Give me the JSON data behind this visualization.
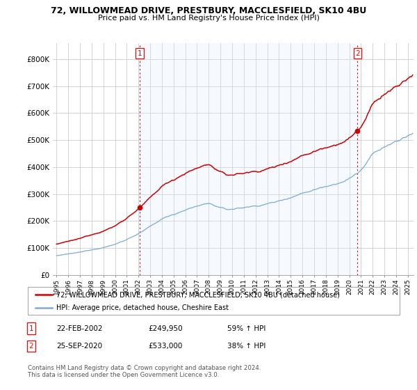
{
  "title1": "72, WILLOWMEAD DRIVE, PRESTBURY, MACCLESFIELD, SK10 4BU",
  "title2": "Price paid vs. HM Land Registry's House Price Index (HPI)",
  "ylabel_ticks": [
    "£0",
    "£100K",
    "£200K",
    "£300K",
    "£400K",
    "£500K",
    "£600K",
    "£700K",
    "£800K"
  ],
  "ytick_vals": [
    0,
    100000,
    200000,
    300000,
    400000,
    500000,
    600000,
    700000,
    800000
  ],
  "ylim": [
    0,
    860000
  ],
  "xlim_start": 1994.7,
  "xlim_end": 2025.5,
  "sale1_date": 2002.12,
  "sale1_price": 249950,
  "sale2_date": 2020.71,
  "sale2_price": 533000,
  "legend_line1": "72, WILLOWMEAD DRIVE, PRESTBURY, MACCLESFIELD, SK10 4BU (detached house)",
  "legend_line2": "HPI: Average price, detached house, Cheshire East",
  "annot1_label": "1",
  "annot1_date_str": "22-FEB-2002",
  "annot1_price_str": "£249,950",
  "annot1_hpi_str": "59% ↑ HPI",
  "annot2_label": "2",
  "annot2_date_str": "25-SEP-2020",
  "annot2_price_str": "£533,000",
  "annot2_hpi_str": "38% ↑ HPI",
  "footer": "Contains HM Land Registry data © Crown copyright and database right 2024.\nThis data is licensed under the Open Government Licence v3.0.",
  "hpi_color": "#7aaadd",
  "price_color": "#cc0000",
  "shade_color": "#ddeeff",
  "grid_color": "#cccccc",
  "bg_color": "#ffffff"
}
